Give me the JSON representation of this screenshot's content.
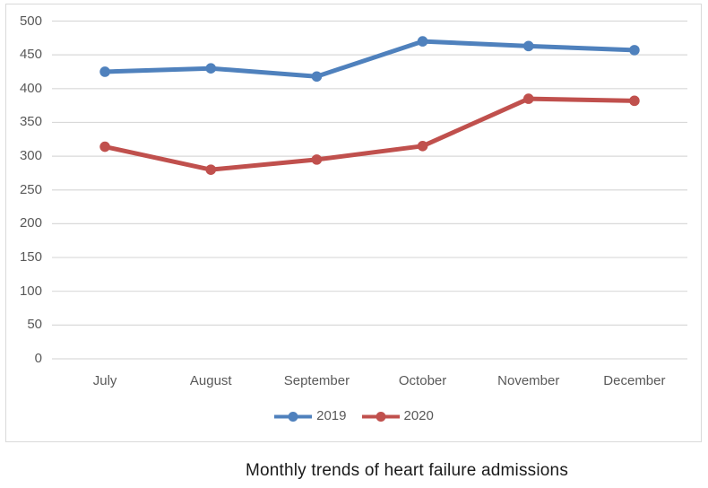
{
  "chart_data": {
    "type": "line",
    "title": "Monthly trends of heart failure admissions",
    "categories": [
      "July",
      "August",
      "September",
      "October",
      "November",
      "December"
    ],
    "series": [
      {
        "name": "2019",
        "color": "#4F81BD",
        "values": [
          425,
          430,
          418,
          470,
          463,
          457
        ]
      },
      {
        "name": "2020",
        "color": "#C0504D",
        "values": [
          314,
          280,
          295,
          315,
          385,
          382
        ]
      }
    ],
    "xlabel": "",
    "ylabel": "",
    "ylim": [
      0,
      500
    ],
    "yticks": [
      0,
      50,
      100,
      150,
      200,
      250,
      300,
      350,
      400,
      450,
      500
    ],
    "grid": true,
    "legend_position": "bottom-center",
    "style": {
      "background": "#FFFFFF",
      "frame_border_color": "#D9D9D9",
      "grid_color": "#D9D9D9",
      "tick_label_color": "#595959",
      "legend_text_color": "#595959",
      "title_color": "#1A1A1A",
      "line_width": 5,
      "marker_radius": 5.8
    }
  }
}
